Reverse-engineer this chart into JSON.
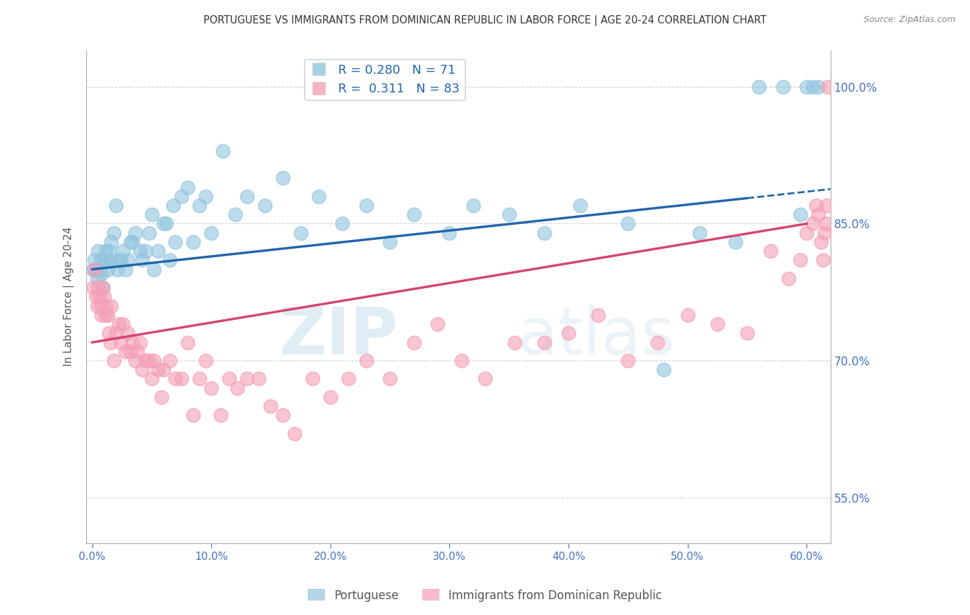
{
  "title": "PORTUGUESE VS IMMIGRANTS FROM DOMINICAN REPUBLIC IN LABOR FORCE | AGE 20-24 CORRELATION CHART",
  "source": "Source: ZipAtlas.com",
  "ylabel": "In Labor Force | Age 20-24",
  "xlabel": "",
  "xlim": [
    -0.005,
    0.62
  ],
  "ylim": [
    0.5,
    1.04
  ],
  "xticks": [
    0.0,
    0.1,
    0.2,
    0.3,
    0.4,
    0.5,
    0.6
  ],
  "xticklabels": [
    "0.0%",
    "10.0%",
    "20.0%",
    "30.0%",
    "40.0%",
    "50.0%",
    "60.0%"
  ],
  "yticks": [
    0.55,
    0.7,
    0.85,
    1.0
  ],
  "yticklabels": [
    "55.0%",
    "70.0%",
    "85.0%",
    "100.0%"
  ],
  "blue_color": "#92c5de",
  "pink_color": "#f4a0b5",
  "blue_line_color": "#2166ac",
  "pink_line_color": "#d6446e",
  "blue_R": 0.28,
  "blue_N": 71,
  "pink_R": 0.311,
  "pink_N": 83,
  "legend_label_blue": "Portuguese",
  "legend_label_pink": "Immigrants from Dominican Republic",
  "blue_x": [
    0.001,
    0.002,
    0.003,
    0.004,
    0.005,
    0.006,
    0.007,
    0.008,
    0.009,
    0.01,
    0.011,
    0.012,
    0.013,
    0.014,
    0.015,
    0.016,
    0.018,
    0.02,
    0.021,
    0.022,
    0.024,
    0.026,
    0.028,
    0.03,
    0.032,
    0.034,
    0.036,
    0.04,
    0.042,
    0.045,
    0.048,
    0.05,
    0.052,
    0.055,
    0.06,
    0.062,
    0.065,
    0.068,
    0.07,
    0.075,
    0.08,
    0.085,
    0.09,
    0.095,
    0.1,
    0.11,
    0.12,
    0.13,
    0.145,
    0.16,
    0.175,
    0.19,
    0.21,
    0.23,
    0.25,
    0.27,
    0.3,
    0.32,
    0.35,
    0.38,
    0.41,
    0.45,
    0.48,
    0.51,
    0.54,
    0.56,
    0.58,
    0.595,
    0.6,
    0.605,
    0.61
  ],
  "blue_y": [
    0.8,
    0.81,
    0.8,
    0.79,
    0.82,
    0.8,
    0.81,
    0.795,
    0.78,
    0.81,
    0.82,
    0.81,
    0.8,
    0.82,
    0.81,
    0.83,
    0.84,
    0.87,
    0.8,
    0.81,
    0.81,
    0.82,
    0.8,
    0.81,
    0.83,
    0.83,
    0.84,
    0.82,
    0.81,
    0.82,
    0.84,
    0.86,
    0.8,
    0.82,
    0.85,
    0.85,
    0.81,
    0.87,
    0.83,
    0.88,
    0.89,
    0.83,
    0.87,
    0.88,
    0.84,
    0.93,
    0.86,
    0.88,
    0.87,
    0.9,
    0.84,
    0.88,
    0.85,
    0.87,
    0.83,
    0.86,
    0.84,
    0.87,
    0.86,
    0.84,
    0.87,
    0.85,
    0.69,
    0.84,
    0.83,
    1.0,
    1.0,
    0.86,
    1.0,
    1.0,
    1.0
  ],
  "pink_x": [
    0.001,
    0.002,
    0.003,
    0.004,
    0.005,
    0.006,
    0.007,
    0.008,
    0.009,
    0.01,
    0.011,
    0.012,
    0.013,
    0.014,
    0.015,
    0.016,
    0.018,
    0.02,
    0.022,
    0.024,
    0.026,
    0.028,
    0.03,
    0.032,
    0.034,
    0.036,
    0.038,
    0.04,
    0.042,
    0.045,
    0.048,
    0.05,
    0.052,
    0.055,
    0.058,
    0.06,
    0.065,
    0.07,
    0.075,
    0.08,
    0.085,
    0.09,
    0.095,
    0.1,
    0.108,
    0.115,
    0.122,
    0.13,
    0.14,
    0.15,
    0.16,
    0.17,
    0.185,
    0.2,
    0.215,
    0.23,
    0.25,
    0.27,
    0.29,
    0.31,
    0.33,
    0.355,
    0.38,
    0.4,
    0.425,
    0.45,
    0.475,
    0.5,
    0.525,
    0.55,
    0.57,
    0.585,
    0.595,
    0.6,
    0.605,
    0.608,
    0.61,
    0.612,
    0.614,
    0.615,
    0.616,
    0.617,
    0.618
  ],
  "pink_y": [
    0.78,
    0.8,
    0.77,
    0.76,
    0.78,
    0.77,
    0.76,
    0.75,
    0.78,
    0.77,
    0.75,
    0.76,
    0.75,
    0.73,
    0.72,
    0.76,
    0.7,
    0.73,
    0.74,
    0.72,
    0.74,
    0.71,
    0.73,
    0.71,
    0.72,
    0.7,
    0.71,
    0.72,
    0.69,
    0.7,
    0.7,
    0.68,
    0.7,
    0.69,
    0.66,
    0.69,
    0.7,
    0.68,
    0.68,
    0.72,
    0.64,
    0.68,
    0.7,
    0.67,
    0.64,
    0.68,
    0.67,
    0.68,
    0.68,
    0.65,
    0.64,
    0.62,
    0.68,
    0.66,
    0.68,
    0.7,
    0.68,
    0.72,
    0.74,
    0.7,
    0.68,
    0.72,
    0.72,
    0.73,
    0.75,
    0.7,
    0.72,
    0.75,
    0.74,
    0.73,
    0.82,
    0.79,
    0.81,
    0.84,
    0.85,
    0.87,
    0.86,
    0.83,
    0.81,
    0.84,
    0.85,
    0.87,
    1.0
  ],
  "watermark_zip": "ZIP",
  "watermark_atlas": "atlas",
  "background_color": "#ffffff",
  "grid_color": "#d0d0d0",
  "tick_color": "#4472c4",
  "axis_color": "#aaaaaa"
}
